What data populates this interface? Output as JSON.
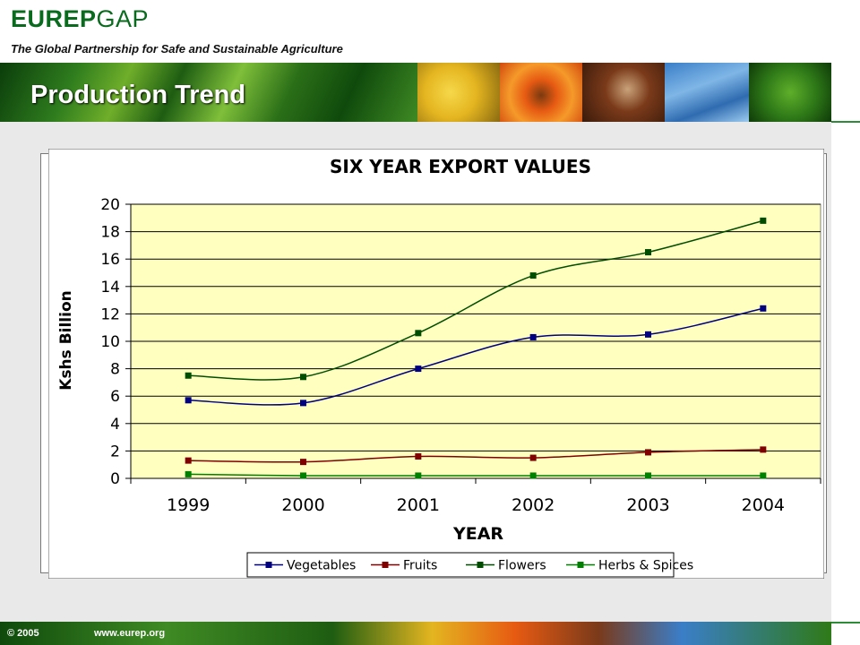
{
  "header": {
    "brand_bold": "EUREP",
    "brand_light": "GAP",
    "tagline": "The Global Partnership for Safe and Sustainable Agriculture",
    "slide_title": "Production Trend"
  },
  "footer": {
    "copyright": "© 2005",
    "website": "www.eurep.org"
  },
  "chart_data": {
    "type": "line",
    "title": "SIX YEAR EXPORT VALUES",
    "xlabel": "YEAR",
    "ylabel": "Kshs Billion",
    "categories": [
      "1999",
      "2000",
      "2001",
      "2002",
      "2003",
      "2004"
    ],
    "ylim": [
      0,
      20
    ],
    "yticks": [
      0,
      2,
      4,
      6,
      8,
      10,
      12,
      14,
      16,
      18,
      20
    ],
    "grid": true,
    "legend_position": "bottom",
    "plot_background": "#ffffc0",
    "series": [
      {
        "name": "Vegetables",
        "color": "#000080",
        "values": [
          5.7,
          5.5,
          8.0,
          10.3,
          10.5,
          12.4
        ]
      },
      {
        "name": "Fruits",
        "color": "#800000",
        "values": [
          1.3,
          1.2,
          1.6,
          1.5,
          1.9,
          2.1
        ]
      },
      {
        "name": "Flowers",
        "color": "#004d00",
        "values": [
          7.5,
          7.4,
          10.6,
          14.8,
          16.5,
          18.8
        ]
      },
      {
        "name": "Herbs & Spices",
        "color": "#008000",
        "values": [
          0.3,
          0.2,
          0.2,
          0.2,
          0.2,
          0.2
        ]
      }
    ]
  }
}
